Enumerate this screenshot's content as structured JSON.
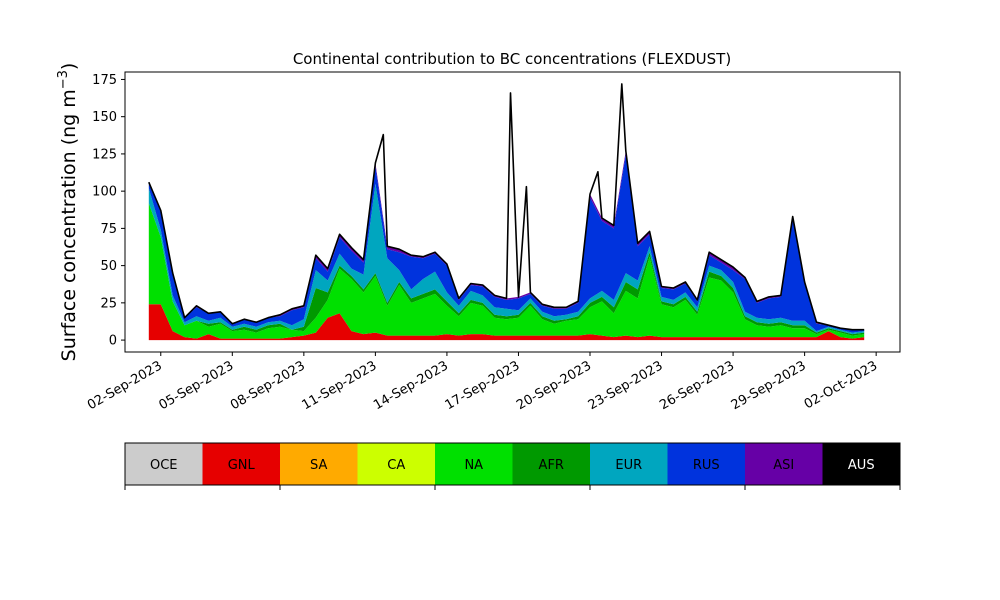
{
  "chart_data": {
    "type": "area",
    "title": "Continental contribution to BC concentrations (FLEXDUST)",
    "ylabel": "Surface concentration (ng m",
    "ylabel_sup": "−3",
    "ylabel_close": ")",
    "xlabel": "",
    "ylim": [
      -8,
      180
    ],
    "xlim": [
      "2023-08-31T12:00",
      "2023-10-03T00:00"
    ],
    "stacked": true,
    "grid": false,
    "yticks": [
      0,
      25,
      50,
      75,
      100,
      125,
      150,
      175
    ],
    "xtick_labels": [
      "02-Sep-2023",
      "05-Sep-2023",
      "08-Sep-2023",
      "11-Sep-2023",
      "14-Sep-2023",
      "17-Sep-2023",
      "20-Sep-2023",
      "23-Sep-2023",
      "26-Sep-2023",
      "29-Sep-2023",
      "02-Oct-2023"
    ],
    "xtick_dates": [
      "2023-09-02",
      "2023-09-05",
      "2023-09-08",
      "2023-09-11",
      "2023-09-14",
      "2023-09-17",
      "2023-09-20",
      "2023-09-23",
      "2023-09-26",
      "2023-09-29",
      "2023-10-02"
    ],
    "x": [
      "2023-09-01T12:00",
      "2023-09-02T00:00",
      "2023-09-02T12:00",
      "2023-09-03T00:00",
      "2023-09-03T12:00",
      "2023-09-04T00:00",
      "2023-09-04T12:00",
      "2023-09-05T00:00",
      "2023-09-05T12:00",
      "2023-09-06T00:00",
      "2023-09-06T12:00",
      "2023-09-07T00:00",
      "2023-09-07T12:00",
      "2023-09-08T00:00",
      "2023-09-08T12:00",
      "2023-09-09T00:00",
      "2023-09-09T12:00",
      "2023-09-10T00:00",
      "2023-09-10T12:00",
      "2023-09-11T00:00",
      "2023-09-11T12:00",
      "2023-09-12T00:00",
      "2023-09-12T12:00",
      "2023-09-13T00:00",
      "2023-09-13T12:00",
      "2023-09-14T00:00",
      "2023-09-14T12:00",
      "2023-09-15T00:00",
      "2023-09-15T12:00",
      "2023-09-16T00:00",
      "2023-09-16T12:00",
      "2023-09-17T00:00",
      "2023-09-17T12:00",
      "2023-09-18T00:00",
      "2023-09-18T12:00",
      "2023-09-19T00:00",
      "2023-09-19T12:00",
      "2023-09-20T00:00",
      "2023-09-20T12:00",
      "2023-09-21T00:00",
      "2023-09-21T12:00",
      "2023-09-22T00:00",
      "2023-09-22T12:00",
      "2023-09-23T00:00",
      "2023-09-23T12:00",
      "2023-09-24T00:00",
      "2023-09-24T12:00",
      "2023-09-25T00:00",
      "2023-09-25T12:00",
      "2023-09-26T00:00",
      "2023-09-26T12:00",
      "2023-09-27T00:00",
      "2023-09-27T12:00",
      "2023-09-28T00:00",
      "2023-09-28T12:00",
      "2023-09-29T00:00",
      "2023-09-29T12:00",
      "2023-09-30T00:00",
      "2023-09-30T12:00",
      "2023-10-01T00:00",
      "2023-10-01T12:00"
    ],
    "series": [
      {
        "name": "OCE",
        "color": "#cccccc",
        "values": [
          0,
          0,
          0,
          0,
          0,
          0,
          0,
          0,
          0,
          0,
          0,
          0,
          0,
          0,
          0,
          0,
          0,
          0,
          0,
          0,
          0,
          0,
          0,
          0,
          0,
          0,
          0,
          0,
          0,
          0,
          0,
          0,
          0,
          0,
          0,
          0,
          0,
          0,
          0,
          0,
          0,
          0,
          0,
          0,
          0,
          0,
          0,
          0,
          0,
          0,
          0,
          0,
          0,
          0,
          0,
          0,
          0,
          0,
          0,
          0,
          0
        ]
      },
      {
        "name": "GNL",
        "color": "#e60000",
        "values": [
          24,
          24,
          6,
          2,
          1,
          4,
          1,
          1,
          1,
          1,
          1,
          1,
          2,
          3,
          5,
          15,
          18,
          6,
          4,
          5,
          3,
          3,
          3,
          3,
          3,
          4,
          3,
          4,
          4,
          3,
          3,
          3,
          3,
          3,
          3,
          3,
          3,
          4,
          3,
          2,
          3,
          2,
          3,
          2,
          2,
          2,
          2,
          2,
          2,
          2,
          2,
          2,
          2,
          2,
          2,
          2,
          2,
          6,
          2,
          1,
          2
        ]
      },
      {
        "name": "SA",
        "color": "#ffaa00",
        "values": [
          0,
          0,
          0,
          0,
          0,
          0,
          0,
          0,
          0,
          0,
          0,
          0,
          0,
          0,
          0,
          0,
          0,
          0,
          0,
          0,
          0,
          0,
          0,
          0,
          0,
          0,
          0,
          0,
          0,
          0,
          0,
          0,
          0,
          0,
          0,
          0,
          0,
          0,
          0,
          0,
          0,
          0,
          0,
          0,
          0,
          0,
          0,
          0,
          0,
          0,
          0,
          0,
          0,
          0,
          0,
          0,
          0,
          0,
          0,
          0,
          0
        ]
      },
      {
        "name": "CA",
        "color": "#ccff00",
        "values": [
          0,
          0,
          0,
          0,
          0,
          0,
          0,
          0,
          0,
          0,
          0,
          0,
          0,
          0,
          0,
          0,
          0,
          0,
          0,
          0,
          0,
          0,
          0,
          0,
          0,
          0,
          0,
          0,
          0,
          0,
          0,
          0,
          0,
          0,
          0,
          0,
          0,
          0,
          0,
          0,
          0,
          0,
          0,
          0,
          0,
          0,
          0,
          0,
          0,
          0,
          0,
          0,
          0,
          0,
          0,
          0,
          0,
          0,
          0,
          0,
          0
        ]
      },
      {
        "name": "NA",
        "color": "#00e000",
        "values": [
          68,
          45,
          20,
          8,
          12,
          5,
          10,
          5,
          6,
          4,
          7,
          8,
          5,
          3,
          10,
          12,
          30,
          35,
          28,
          38,
          20,
          34,
          22,
          25,
          28,
          19,
          13,
          21,
          19,
          12,
          11,
          12,
          20,
          11,
          8,
          10,
          11,
          18,
          23,
          16,
          30,
          26,
          53,
          22,
          20,
          25,
          15,
          40,
          38,
          30,
          12,
          8,
          7,
          8,
          6,
          6,
          2,
          1,
          3,
          2,
          2
        ]
      },
      {
        "name": "AFR",
        "color": "#009900",
        "values": [
          0,
          0,
          0,
          0,
          0,
          2,
          1,
          1,
          2,
          2,
          2,
          2,
          0,
          3,
          20,
          5,
          2,
          2,
          2,
          2,
          2,
          2,
          3,
          3,
          3,
          3,
          2,
          2,
          2,
          2,
          2,
          2,
          2,
          2,
          2,
          1,
          2,
          3,
          3,
          4,
          6,
          6,
          3,
          2,
          2,
          2,
          2,
          4,
          3,
          3,
          2,
          2,
          2,
          2,
          2,
          2,
          1,
          1,
          1,
          1,
          1
        ]
      },
      {
        "name": "EUR",
        "color": "#00a6bf",
        "values": [
          10,
          5,
          4,
          2,
          3,
          2,
          3,
          2,
          2,
          2,
          2,
          2,
          3,
          5,
          12,
          8,
          8,
          5,
          10,
          60,
          30,
          8,
          6,
          10,
          12,
          6,
          5,
          6,
          5,
          5,
          5,
          3,
          3,
          3,
          3,
          3,
          3,
          3,
          4,
          5,
          6,
          6,
          4,
          3,
          3,
          3,
          3,
          4,
          4,
          4,
          3,
          3,
          3,
          3,
          3,
          3,
          1,
          1,
          1,
          1,
          1
        ]
      },
      {
        "name": "RUS",
        "color": "#0033dd",
        "values": [
          4,
          12,
          14,
          3,
          6,
          5,
          4,
          2,
          3,
          3,
          3,
          3,
          10,
          8,
          8,
          6,
          11,
          12,
          8,
          12,
          6,
          12,
          22,
          14,
          12,
          18,
          4,
          4,
          6,
          7,
          6,
          8,
          3,
          4,
          5,
          4,
          6,
          68,
          47,
          48,
          80,
          23,
          8,
          6,
          7,
          6,
          4,
          7,
          5,
          8,
          22,
          10,
          14,
          14,
          69,
          25,
          5,
          1,
          1,
          2,
          1
        ]
      },
      {
        "name": "ASI",
        "color": "#6600a6",
        "values": [
          0,
          1,
          1,
          0,
          1,
          0,
          0,
          0,
          0,
          0,
          0,
          1,
          1,
          1,
          2,
          2,
          2,
          2,
          2,
          2,
          2,
          2,
          1,
          1,
          1,
          1,
          1,
          1,
          1,
          1,
          1,
          1,
          1,
          1,
          1,
          1,
          1,
          2,
          2,
          2,
          2,
          2,
          2,
          1,
          1,
          1,
          1,
          2,
          2,
          2,
          1,
          1,
          1,
          1,
          1,
          1,
          1,
          0,
          0,
          0,
          0
        ]
      },
      {
        "name": "AUS",
        "color": "#000000",
        "values": [
          0,
          0,
          0,
          0,
          0,
          0,
          0,
          0,
          0,
          0,
          0,
          0,
          0,
          0,
          0,
          0,
          0,
          0,
          0,
          0,
          0,
          0,
          0,
          0,
          0,
          0,
          0,
          0,
          0,
          0,
          0,
          0,
          0,
          0,
          0,
          0,
          0,
          0,
          0,
          0,
          0,
          0,
          0,
          0,
          0,
          0,
          0,
          0,
          0,
          0,
          0,
          0,
          0,
          0,
          0,
          0,
          0,
          0,
          0,
          0,
          0
        ]
      }
    ],
    "total_peaks": [
      {
        "x": "2023-09-11T08:00",
        "y": 138
      },
      {
        "x": "2023-09-16T16:00",
        "y": 166
      },
      {
        "x": "2023-09-17T08:00",
        "y": 103
      },
      {
        "x": "2023-09-20T08:00",
        "y": 113
      },
      {
        "x": "2023-09-21T08:00",
        "y": 172
      }
    ],
    "legend": {
      "placement": "bottom",
      "items": [
        "OCE",
        "GNL",
        "SA",
        "CA",
        "NA",
        "AFR",
        "EUR",
        "RUS",
        "ASI",
        "AUS"
      ]
    }
  }
}
